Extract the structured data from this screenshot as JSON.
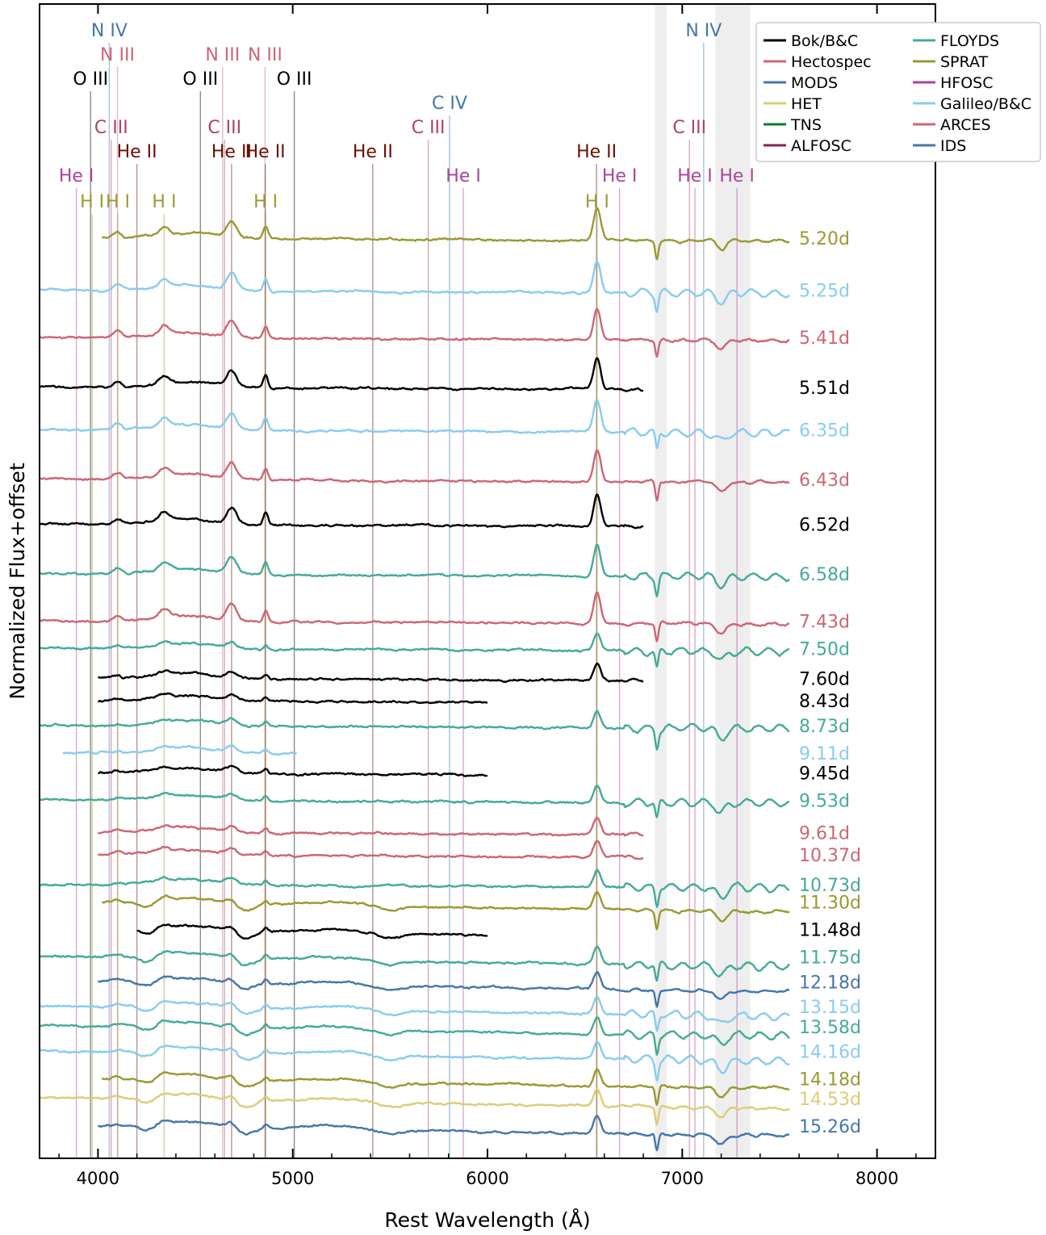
{
  "chart_data": {
    "type": "line",
    "title": "",
    "xlabel": "Rest Wavelength (Å)",
    "ylabel": "Normalized Flux+offset",
    "xlim": [
      3700,
      8300
    ],
    "x_ticks": [
      4000,
      5000,
      6000,
      7000,
      8000
    ],
    "x_tick_labels": [
      "4000",
      "5000",
      "6000",
      "7000",
      "8000"
    ],
    "y_ticks_shown": false,
    "grid": false,
    "legend_position": "top-right",
    "legend": [
      {
        "name": "Bok/B&C",
        "color": "#000000"
      },
      {
        "name": "Hectospec",
        "color": "#cc6677"
      },
      {
        "name": "MODS",
        "color": "#4477aa"
      },
      {
        "name": "HET",
        "color": "#ddcc77"
      },
      {
        "name": "TNS",
        "color": "#117733"
      },
      {
        "name": "ALFOSC",
        "color": "#882255"
      },
      {
        "name": "FLOYDS",
        "color": "#44aa99"
      },
      {
        "name": "SPRAT",
        "color": "#999933"
      },
      {
        "name": "HFOSC",
        "color": "#aa4499"
      },
      {
        "name": "Galileo/B&C",
        "color": "#88ccee"
      },
      {
        "name": "ARCES",
        "color": "#cc6677"
      },
      {
        "name": "IDS",
        "color": "#4477aa"
      }
    ],
    "telluric_bands": [
      [
        6860,
        6920
      ],
      [
        7170,
        7350
      ]
    ],
    "line_ids": [
      {
        "label": "N IV",
        "wl": 4058,
        "color": "#4477aa"
      },
      {
        "label": "N IV",
        "wl": 7110,
        "color": "#4477aa"
      },
      {
        "label": "N III",
        "wl": 4100,
        "color": "#cc6677"
      },
      {
        "label": "N III",
        "wl": 4640,
        "color": "#cc6677"
      },
      {
        "label": "N III",
        "wl": 4858,
        "color": "#cc6677"
      },
      {
        "label": "O III",
        "wl": 3962,
        "color": "#000000"
      },
      {
        "label": "O III",
        "wl": 4526,
        "color": "#000000"
      },
      {
        "label": "O III",
        "wl": 5008,
        "color": "#000000"
      },
      {
        "label": "C IV",
        "wl": 5805,
        "color": "#4477aa"
      },
      {
        "label": "C III",
        "wl": 4068,
        "color": "#aa4466"
      },
      {
        "label": "C III",
        "wl": 4650,
        "color": "#aa4466"
      },
      {
        "label": "C III",
        "wl": 5696,
        "color": "#aa4466"
      },
      {
        "label": "C III",
        "wl": 7037,
        "color": "#aa4466"
      },
      {
        "label": "He II",
        "wl": 4200,
        "color": "#661100"
      },
      {
        "label": "He II",
        "wl": 4686,
        "color": "#661100"
      },
      {
        "label": "He II",
        "wl": 4859,
        "color": "#661100"
      },
      {
        "label": "He II",
        "wl": 5411,
        "color": "#661100"
      },
      {
        "label": "He II",
        "wl": 6560,
        "color": "#661100"
      },
      {
        "label": "He I",
        "wl": 3889,
        "color": "#aa4499"
      },
      {
        "label": "He I",
        "wl": 5876,
        "color": "#aa4499"
      },
      {
        "label": "He I",
        "wl": 6678,
        "color": "#aa4499"
      },
      {
        "label": "He I",
        "wl": 7065,
        "color": "#aa4499"
      },
      {
        "label": "He I",
        "wl": 7281,
        "color": "#aa4499"
      },
      {
        "label": "H I",
        "wl": 3970,
        "color": "#999933"
      },
      {
        "label": "H I",
        "wl": 4102,
        "color": "#999933"
      },
      {
        "label": "H I",
        "wl": 4340,
        "color": "#999933"
      },
      {
        "label": "H I",
        "wl": 4861,
        "color": "#999933"
      },
      {
        "label": "H I",
        "wl": 6563,
        "color": "#999933"
      }
    ],
    "series": [
      {
        "name": "5.20d",
        "instrument": "SPRAT",
        "color": "#999933",
        "range": [
          4020,
          7550
        ],
        "offset": 28.3
      },
      {
        "name": "5.25d",
        "instrument": "Galileo/B&C",
        "color": "#88ccee",
        "range": [
          3700,
          7550
        ],
        "offset": 26.2
      },
      {
        "name": "5.41d",
        "instrument": "Hectospec",
        "color": "#cc6677",
        "range": [
          3700,
          7550
        ],
        "offset": 24.3
      },
      {
        "name": "5.51d",
        "instrument": "Bok/B&C",
        "color": "#000000",
        "range": [
          3700,
          6800
        ],
        "offset": 22.3
      },
      {
        "name": "6.35d",
        "instrument": "Galileo/B&C",
        "color": "#88ccee",
        "range": [
          3700,
          7550
        ],
        "offset": 20.6
      },
      {
        "name": "6.43d",
        "instrument": "Hectospec",
        "color": "#cc6677",
        "range": [
          3700,
          7550
        ],
        "offset": 18.6
      },
      {
        "name": "6.52d",
        "instrument": "Bok/B&C",
        "color": "#000000",
        "range": [
          3700,
          6800
        ],
        "offset": 16.8
      },
      {
        "name": "6.58d",
        "instrument": "FLOYDS",
        "color": "#44aa99",
        "range": [
          3700,
          7550
        ],
        "offset": 14.8
      },
      {
        "name": "7.43d",
        "instrument": "Hectospec",
        "color": "#cc6677",
        "range": [
          3700,
          7550
        ],
        "offset": 12.9
      },
      {
        "name": "7.50d",
        "instrument": "FLOYDS",
        "color": "#44aa99",
        "range": [
          3700,
          7550
        ],
        "offset": 11.8
      },
      {
        "name": "7.60d",
        "instrument": "Bok/B&C",
        "color": "#000000",
        "range": [
          4000,
          6800
        ],
        "offset": 10.6
      },
      {
        "name": "8.43d",
        "instrument": "Bok/B&C",
        "color": "#000000",
        "range": [
          4000,
          6000
        ],
        "offset": 9.7
      },
      {
        "name": "8.73d",
        "instrument": "FLOYDS",
        "color": "#44aa99",
        "range": [
          3700,
          7550
        ],
        "offset": 8.7
      },
      {
        "name": "9.11d",
        "instrument": "Galileo/B&C",
        "color": "#88ccee",
        "range": [
          3820,
          5020
        ],
        "offset": 7.6
      },
      {
        "name": "9.45d",
        "instrument": "Bok/B&C",
        "color": "#000000",
        "range": [
          4000,
          6000
        ],
        "offset": 6.8
      },
      {
        "name": "9.53d",
        "instrument": "FLOYDS",
        "color": "#44aa99",
        "range": [
          3700,
          7550
        ],
        "offset": 5.7
      },
      {
        "name": "9.61d",
        "instrument": "Hectospec",
        "color": "#cc6677",
        "range": [
          4000,
          6800
        ],
        "offset": 4.4
      },
      {
        "name": "10.37d",
        "instrument": "Hectospec",
        "color": "#cc6677",
        "range": [
          4000,
          6800
        ],
        "offset": 3.5
      },
      {
        "name": "10.73d",
        "instrument": "FLOYDS",
        "color": "#44aa99",
        "range": [
          3700,
          7550
        ],
        "offset": 2.3
      },
      {
        "name": "11.30d",
        "instrument": "SPRAT",
        "color": "#999933",
        "range": [
          4020,
          7550
        ],
        "offset": 1.6
      },
      {
        "name": "11.48d",
        "instrument": "Bok/B&C",
        "color": "#000000",
        "range": [
          4200,
          6000
        ],
        "offset": 0.5
      },
      {
        "name": "11.75d",
        "instrument": "FLOYDS",
        "color": "#44aa99",
        "range": [
          3700,
          7550
        ],
        "offset": -0.6
      },
      {
        "name": "12.18d",
        "instrument": "MODS",
        "color": "#4477aa",
        "range": [
          4000,
          7550
        ],
        "offset": -1.6
      },
      {
        "name": "13.15d",
        "instrument": "Galileo/B&C",
        "color": "#88ccee",
        "range": [
          3700,
          7550
        ],
        "offset": -2.6
      },
      {
        "name": "13.58d",
        "instrument": "FLOYDS",
        "color": "#44aa99",
        "range": [
          3700,
          7550
        ],
        "offset": -3.4
      },
      {
        "name": "14.16d",
        "instrument": "Galileo/B&C",
        "color": "#88ccee",
        "range": [
          3700,
          7550
        ],
        "offset": -4.4
      },
      {
        "name": "14.18d",
        "instrument": "SPRAT",
        "color": "#999933",
        "range": [
          4020,
          7550
        ],
        "offset": -5.5
      },
      {
        "name": "14.53d",
        "instrument": "HET",
        "color": "#ddcc77",
        "range": [
          3700,
          7550
        ],
        "offset": -6.3
      },
      {
        "name": "15.26d",
        "instrument": "IDS",
        "color": "#4477aa",
        "range": [
          4000,
          7550
        ],
        "offset": -7.4
      }
    ]
  }
}
